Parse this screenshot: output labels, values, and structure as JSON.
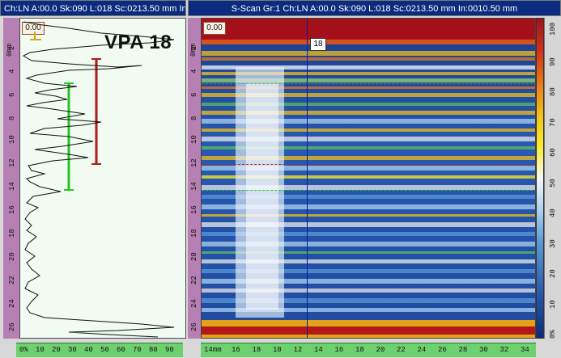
{
  "left_panel": {
    "title": "Ch:LN A:00.0 Sk:090 L:018 Sc:0213.50 mm In:",
    "zero_value": "0.00",
    "vpa_label": "VPA 18",
    "depth_unit": "0mm",
    "depth_ticks": [
      "2",
      "4",
      "6",
      "8",
      "10",
      "12",
      "14",
      "16",
      "18",
      "20",
      "22",
      "24",
      "26"
    ],
    "amp_ticks": [
      "0%",
      "10",
      "20",
      "30",
      "40",
      "50",
      "60",
      "70",
      "80",
      "90"
    ]
  },
  "right_panel": {
    "title": "S-Scan Gr:1 Ch:LN A:00.0 Sk:090 L:018 Sc:0213.50 mm In:0010.50 mm",
    "zero_value": "0.00",
    "cursor_value": "18",
    "depth_unit": "0mm",
    "depth_ticks": [
      "2",
      "4",
      "6",
      "8",
      "10",
      "12",
      "14",
      "16",
      "18",
      "20",
      "22",
      "24",
      "26"
    ],
    "index_unit": "14mm",
    "index_ticks": [
      "16",
      "18",
      "10",
      "12",
      "14",
      "16",
      "18",
      "20",
      "22",
      "24",
      "26",
      "28",
      "30",
      "32",
      "34"
    ],
    "palette_ticks": [
      "100",
      "90",
      "80",
      "70",
      "60",
      "50",
      "40",
      "30",
      "20",
      "10",
      "0%"
    ]
  },
  "colors": {
    "title_bg": "#0b2b7e",
    "depth_ruler": "#b680b4",
    "index_ruler": "#6fd06f",
    "gate_green": "#27c227",
    "gate_red": "#b11a1a",
    "cursor": "#0b1b9b"
  }
}
